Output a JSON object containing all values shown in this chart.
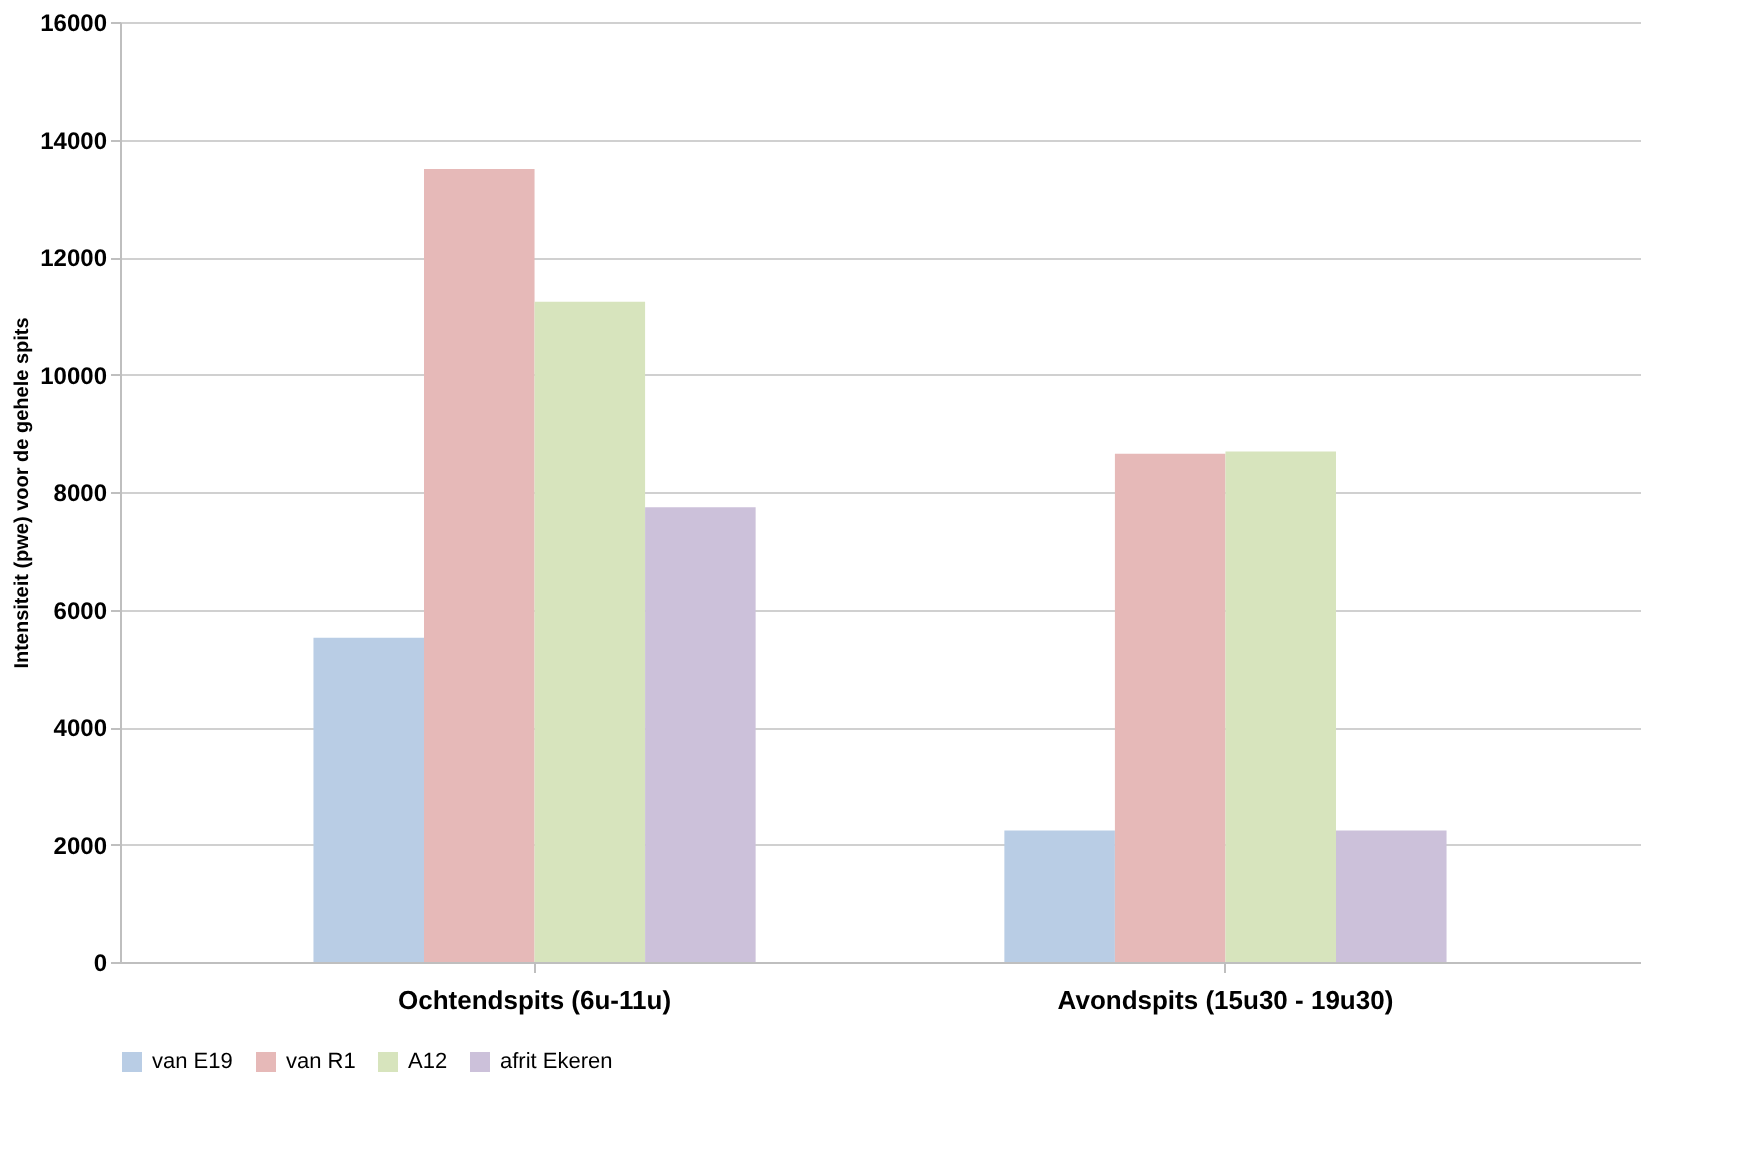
{
  "chart_data": {
    "type": "bar",
    "ylabel": "Intensiteit (pwe) voor de gehele spits",
    "categories": [
      "Ochtendspits (6u-11u)",
      "Avondspits (15u30 - 19u30)"
    ],
    "series": [
      {
        "name": "van E19",
        "color": "#b9cde5",
        "values": [
          5520,
          2240
        ]
      },
      {
        "name": "van R1",
        "color": "#e6b9b8",
        "values": [
          13500,
          8650
        ]
      },
      {
        "name": "A12",
        "color": "#d7e4bd",
        "values": [
          11240,
          8690
        ]
      },
      {
        "name": "afrit Ekeren",
        "color": "#ccc1da",
        "values": [
          7740,
          2240
        ]
      }
    ],
    "ylim": [
      0,
      16000
    ],
    "yticks": [
      0,
      2000,
      4000,
      6000,
      8000,
      10000,
      12000,
      14000,
      16000
    ],
    "grid": "y",
    "legend": "bottom"
  }
}
